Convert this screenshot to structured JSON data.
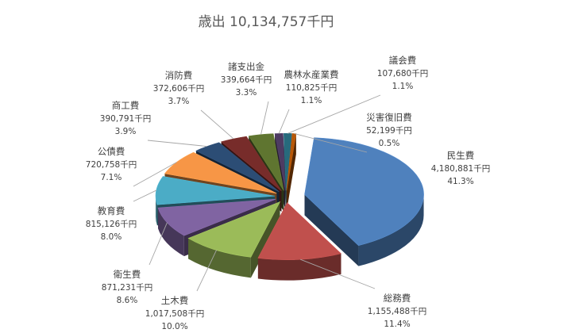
{
  "chart_data": {
    "type": "pie",
    "title": "歳出 10,134,757千円",
    "unit": "千円",
    "total": 10134757,
    "slices": [
      {
        "name": "民生費",
        "value": 4180881,
        "value_label": "4,180,881千円",
        "percent_label": "41.3%",
        "color": "#4f81bd"
      },
      {
        "name": "総務費",
        "value": 1155488,
        "value_label": "1,155,488千円",
        "percent_label": "11.4%",
        "color": "#c0504d"
      },
      {
        "name": "土木費",
        "value": 1017508,
        "value_label": "1,017,508千円",
        "percent_label": "10.0%",
        "color": "#9bbb59"
      },
      {
        "name": "衛生費",
        "value": 871231,
        "value_label": "871,231千円",
        "percent_label": "8.6%",
        "color": "#8064a2"
      },
      {
        "name": "教育費",
        "value": 815126,
        "value_label": "815,126千円",
        "percent_label": "8.0%",
        "color": "#4bacc6"
      },
      {
        "name": "公債費",
        "value": 720758,
        "value_label": "720,758千円",
        "percent_label": "7.1%",
        "color": "#f79646"
      },
      {
        "name": "商工費",
        "value": 390791,
        "value_label": "390,791千円",
        "percent_label": "3.9%",
        "color": "#2c4d75"
      },
      {
        "name": "消防費",
        "value": 372606,
        "value_label": "372,606千円",
        "percent_label": "3.7%",
        "color": "#772c2a"
      },
      {
        "name": "諸支出金",
        "value": 339664,
        "value_label": "339,664千円",
        "percent_label": "3.3%",
        "color": "#5f7530"
      },
      {
        "name": "農林水産業費",
        "value": 110825,
        "value_label": "110,825千円",
        "percent_label": "1.1%",
        "color": "#4d3b62"
      },
      {
        "name": "議会費",
        "value": 107680,
        "value_label": "107,680千円",
        "percent_label": "1.1%",
        "color": "#276a7c"
      },
      {
        "name": "災害復旧費",
        "value": 52199,
        "value_label": "52,199千円",
        "percent_label": "0.5%",
        "color": "#b65708"
      }
    ],
    "legend": "none",
    "style": "3d-exploded"
  }
}
